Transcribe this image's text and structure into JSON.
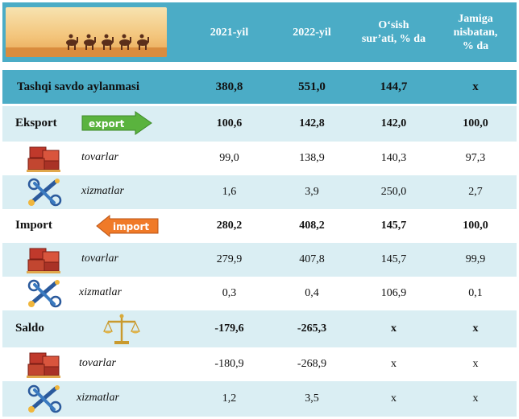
{
  "header": {
    "col1": "2021-yil",
    "col2": "2022-yil",
    "col3_line1": "O‘sish",
    "col3_line2": "sur’ati, % da",
    "col4_line1": "Jamiga",
    "col4_line2": "nisbatan,",
    "col4_line3": "% da"
  },
  "rows": [
    {
      "label": "Tashqi savdo aylanmasi",
      "v2021": "380,8",
      "v2022": "551,0",
      "growth": "144,7",
      "share": "x"
    },
    {
      "label": "Eksport",
      "badge": "export",
      "v2021": "100,6",
      "v2022": "142,8",
      "growth": "142,0",
      "share": "100,0"
    },
    {
      "label": "tovarlar",
      "v2021": "99,0",
      "v2022": "138,9",
      "growth": "140,3",
      "share": "97,3"
    },
    {
      "label": "xizmatlar",
      "v2021": "1,6",
      "v2022": "3,9",
      "growth": "250,0",
      "share": "2,7"
    },
    {
      "label": "Import",
      "badge": "import",
      "v2021": "280,2",
      "v2022": "408,2",
      "growth": "145,7",
      "share": "100,0"
    },
    {
      "label": "tovarlar",
      "v2021": "279,9",
      "v2022": "407,8",
      "growth": "145,7",
      "share": "99,9"
    },
    {
      "label": "xizmatlar",
      "v2021": "0,3",
      "v2022": "0,4",
      "growth": "106,9",
      "share": "0,1"
    },
    {
      "label": "Saldo",
      "v2021": "-179,6",
      "v2022": "-265,3",
      "growth": "x",
      "share": "x"
    },
    {
      "label": "tovarlar",
      "v2021": "-180,9",
      "v2022": "-268,9",
      "growth": "x",
      "share": "x"
    },
    {
      "label": "xizmatlar",
      "v2021": "1,2",
      "v2022": "3,5",
      "growth": "x",
      "share": "x"
    }
  ],
  "icons": {
    "banner": "desert-caravan-image",
    "export": "export-arrow-icon",
    "import": "import-arrow-icon",
    "goods": "cargo-boxes-icon",
    "services": "tools-gears-icon",
    "balance": "scales-icon"
  },
  "colors": {
    "header_bg": "#4bacc6",
    "row_light": "#daeef3",
    "row_white": "#ffffff",
    "export_badge": "#5ab33e",
    "import_badge": "#f07a28"
  }
}
